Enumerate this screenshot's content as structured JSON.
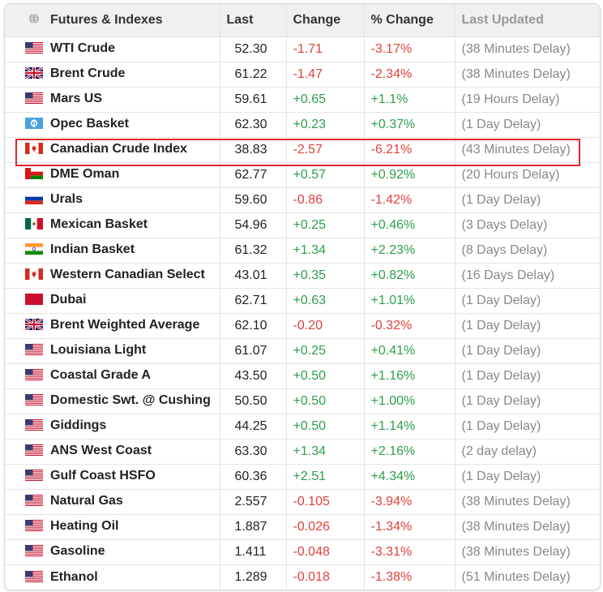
{
  "table": {
    "headers": {
      "name": "Futures & Indexes",
      "last": "Last",
      "change": "Change",
      "pct_change": "% Change",
      "last_updated": "Last Updated"
    },
    "rows": [
      {
        "flag": "us-flag-icon",
        "name": "WTI Crude",
        "last": "52.30",
        "change": "-1.71",
        "pct": "-3.17%",
        "updated": "(38 Minutes Delay)",
        "direction": "neg"
      },
      {
        "flag": "uk-flag-icon",
        "name": "Brent Crude",
        "last": "61.22",
        "change": "-1.47",
        "pct": "-2.34%",
        "updated": "(38 Minutes Delay)",
        "direction": "neg"
      },
      {
        "flag": "us-flag-icon",
        "name": "Mars US",
        "last": "59.61",
        "change": "+0.65",
        "pct": "+1.1%",
        "updated": "(19 Hours Delay)",
        "direction": "pos"
      },
      {
        "flag": "opec-flag-icon",
        "name": "Opec Basket",
        "last": "62.30",
        "change": "+0.23",
        "pct": "+0.37%",
        "updated": "(1 Day Delay)",
        "direction": "pos"
      },
      {
        "flag": "canada-flag-icon",
        "name": "Canadian Crude Index",
        "last": "38.83",
        "change": "-2.57",
        "pct": "-6.21%",
        "updated": "(43 Minutes Delay)",
        "direction": "neg"
      },
      {
        "flag": "oman-flag-icon",
        "name": "DME Oman",
        "last": "62.77",
        "change": "+0.57",
        "pct": "+0.92%",
        "updated": "(20 Hours Delay)",
        "direction": "pos"
      },
      {
        "flag": "russia-flag-icon",
        "name": "Urals",
        "last": "59.60",
        "change": "-0.86",
        "pct": "-1.42%",
        "updated": "(1 Day Delay)",
        "direction": "neg"
      },
      {
        "flag": "mexico-flag-icon",
        "name": "Mexican Basket",
        "last": "54.96",
        "change": "+0.25",
        "pct": "+0.46%",
        "updated": "(3 Days Delay)",
        "direction": "pos"
      },
      {
        "flag": "india-flag-icon",
        "name": "Indian Basket",
        "last": "61.32",
        "change": "+1.34",
        "pct": "+2.23%",
        "updated": "(8 Days Delay)",
        "direction": "pos"
      },
      {
        "flag": "canada-flag-icon",
        "name": "Western Canadian Select",
        "last": "43.01",
        "change": "+0.35",
        "pct": "+0.82%",
        "updated": "(16 Days Delay)",
        "direction": "pos"
      },
      {
        "flag": "dubai-flag-icon",
        "name": "Dubai",
        "last": "62.71",
        "change": "+0.63",
        "pct": "+1.01%",
        "updated": "(1 Day Delay)",
        "direction": "pos"
      },
      {
        "flag": "uk-flag-icon",
        "name": "Brent Weighted Average",
        "last": "62.10",
        "change": "-0.20",
        "pct": "-0.32%",
        "updated": "(1 Day Delay)",
        "direction": "neg"
      },
      {
        "flag": "us-flag-icon",
        "name": "Louisiana Light",
        "last": "61.07",
        "change": "+0.25",
        "pct": "+0.41%",
        "updated": "(1 Day Delay)",
        "direction": "pos"
      },
      {
        "flag": "us-flag-icon",
        "name": "Coastal Grade A",
        "last": "43.50",
        "change": "+0.50",
        "pct": "+1.16%",
        "updated": "(1 Day Delay)",
        "direction": "pos"
      },
      {
        "flag": "us-flag-icon",
        "name": "Domestic Swt. @ Cushing",
        "last": "50.50",
        "change": "+0.50",
        "pct": "+1.00%",
        "updated": "(1 Day Delay)",
        "direction": "pos"
      },
      {
        "flag": "us-flag-icon",
        "name": "Giddings",
        "last": "44.25",
        "change": "+0.50",
        "pct": "+1.14%",
        "updated": "(1 Day Delay)",
        "direction": "pos"
      },
      {
        "flag": "us-flag-icon",
        "name": "ANS West Coast",
        "last": "63.30",
        "change": "+1.34",
        "pct": "+2.16%",
        "updated": "(2 day delay)",
        "direction": "pos"
      },
      {
        "flag": "us-flag-icon",
        "name": "Gulf Coast HSFO",
        "last": "60.36",
        "change": "+2.51",
        "pct": "+4.34%",
        "updated": "(1 Day Delay)",
        "direction": "pos"
      },
      {
        "flag": "us-flag-icon",
        "name": "Natural Gas",
        "last": "2.557",
        "change": "-0.105",
        "pct": "-3.94%",
        "updated": "(38 Minutes Delay)",
        "direction": "neg"
      },
      {
        "flag": "us-flag-icon",
        "name": "Heating Oil",
        "last": "1.887",
        "change": "-0.026",
        "pct": "-1.34%",
        "updated": "(38 Minutes Delay)",
        "direction": "neg"
      },
      {
        "flag": "us-flag-icon",
        "name": "Gasoline",
        "last": "1.411",
        "change": "-0.048",
        "pct": "-3.31%",
        "updated": "(38 Minutes Delay)",
        "direction": "neg"
      },
      {
        "flag": "us-flag-icon",
        "name": "Ethanol",
        "last": "1.289",
        "change": "-0.018",
        "pct": "-1.38%",
        "updated": "(51 Minutes Delay)",
        "direction": "neg"
      }
    ],
    "highlighted_row": "Canadian Crude Index"
  },
  "colors": {
    "positive": "#2e9e4a",
    "negative": "#e0413a",
    "highlight_border": "#e2262b",
    "header_bg": "#f0f0f0"
  }
}
